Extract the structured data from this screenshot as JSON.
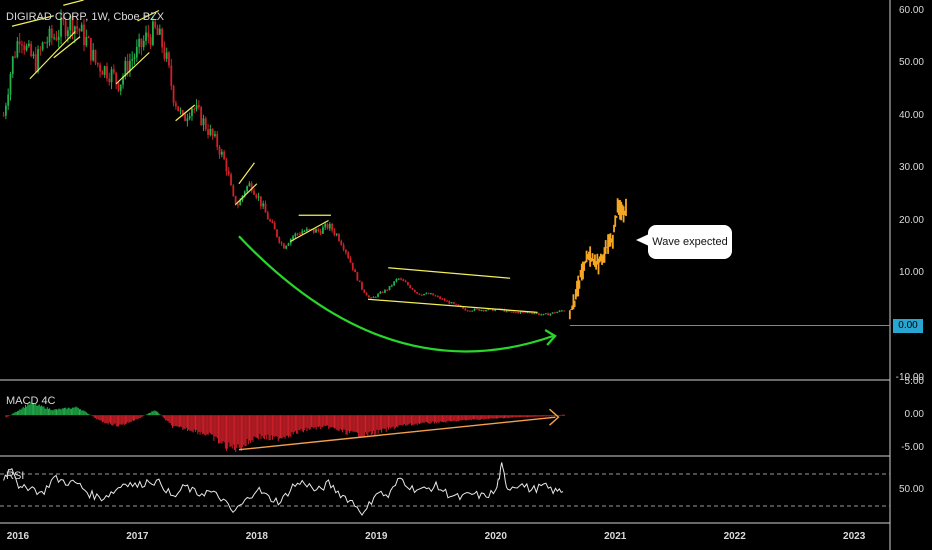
{
  "title": "DIGIRAD CORP, 1W, Cboe BZX",
  "annotation": "Wave expected",
  "current_price_label": "0.00",
  "panels": {
    "macd_label": "MACD 4C",
    "rsi_label": "RSI"
  },
  "colors": {
    "up": "#22b14c",
    "down": "#d0202a",
    "projection": "#f5a623",
    "pattern_lines": "#f2f05a",
    "arc": "#2ad62a",
    "macd_trend": "#f5a04a",
    "price_line": "#26a6d1",
    "rsi_line": "#e8e8e8"
  },
  "chart_data": [
    {
      "type": "candlestick",
      "panel": "price",
      "title": "DIGIRAD CORP, 1W, Cboe BZX",
      "y_ticks": [
        "60.00",
        "50.00",
        "40.00",
        "30.00",
        "20.00",
        "10.00",
        "0.00",
        "-10.00"
      ],
      "ylim": [
        -10,
        62
      ],
      "x_ticks": [
        "2016",
        "2017",
        "2018",
        "2019",
        "2020",
        "2021",
        "2022",
        "2023"
      ],
      "xlim": [
        2015.85,
        2023.3
      ],
      "close_series": [
        [
          2015.88,
          40
        ],
        [
          2015.95,
          50
        ],
        [
          2016.02,
          56
        ],
        [
          2016.08,
          52
        ],
        [
          2016.15,
          50
        ],
        [
          2016.22,
          54
        ],
        [
          2016.3,
          55
        ],
        [
          2016.38,
          57
        ],
        [
          2016.45,
          58
        ],
        [
          2016.52,
          56
        ],
        [
          2016.58,
          54
        ],
        [
          2016.65,
          50
        ],
        [
          2016.72,
          49
        ],
        [
          2016.78,
          48
        ],
        [
          2016.85,
          46
        ],
        [
          2016.92,
          50
        ],
        [
          2017.0,
          52
        ],
        [
          2017.08,
          55
        ],
        [
          2017.15,
          56
        ],
        [
          2017.2,
          54
        ],
        [
          2017.25,
          50
        ],
        [
          2017.3,
          44
        ],
        [
          2017.38,
          39
        ],
        [
          2017.45,
          42
        ],
        [
          2017.52,
          40
        ],
        [
          2017.6,
          37
        ],
        [
          2017.68,
          34
        ],
        [
          2017.75,
          30
        ],
        [
          2017.8,
          24
        ],
        [
          2017.85,
          23
        ],
        [
          2017.9,
          26
        ],
        [
          2017.95,
          27
        ],
        [
          2018.0,
          25
        ],
        [
          2018.08,
          21
        ],
        [
          2018.15,
          18
        ],
        [
          2018.22,
          15
        ],
        [
          2018.3,
          17
        ],
        [
          2018.38,
          18
        ],
        [
          2018.45,
          18
        ],
        [
          2018.52,
          18
        ],
        [
          2018.6,
          19
        ],
        [
          2018.68,
          17
        ],
        [
          2018.75,
          14
        ],
        [
          2018.82,
          10
        ],
        [
          2018.88,
          7
        ],
        [
          2018.95,
          5
        ],
        [
          2019.02,
          6
        ],
        [
          2019.1,
          7
        ],
        [
          2019.18,
          9
        ],
        [
          2019.25,
          8
        ],
        [
          2019.35,
          6
        ],
        [
          2019.45,
          6
        ],
        [
          2019.55,
          5
        ],
        [
          2019.65,
          4
        ],
        [
          2019.75,
          3
        ],
        [
          2019.85,
          3
        ],
        [
          2019.95,
          3
        ],
        [
          2020.05,
          3
        ],
        [
          2020.12,
          2.5
        ],
        [
          2020.2,
          2.5
        ],
        [
          2020.3,
          2.5
        ],
        [
          2020.4,
          2
        ],
        [
          2020.5,
          2.5
        ],
        [
          2020.58,
          3
        ]
      ],
      "projection": [
        [
          2020.62,
          3
        ],
        [
          2020.66,
          5
        ],
        [
          2020.7,
          9
        ],
        [
          2020.74,
          12
        ],
        [
          2020.78,
          14
        ],
        [
          2020.82,
          13
        ],
        [
          2020.86,
          12
        ],
        [
          2020.9,
          14
        ],
        [
          2020.94,
          16
        ],
        [
          2020.98,
          17
        ],
        [
          2021.02,
          23
        ],
        [
          2021.06,
          22
        ],
        [
          2021.1,
          23
        ]
      ],
      "projection_label": "Wave expected",
      "current_price_line": 0
    },
    {
      "type": "histogram",
      "panel": "macd",
      "name": "MACD 4C",
      "y_ticks": [
        "5.00",
        "0.00",
        "-5.00"
      ],
      "ylim": [
        -6,
        5
      ],
      "x": [
        2015.9,
        2016.1,
        2016.3,
        2016.5,
        2016.7,
        2016.85,
        2017.0,
        2017.15,
        2017.3,
        2017.45,
        2017.6,
        2017.75,
        2017.85,
        2018.0,
        2018.15,
        2018.3,
        2018.45,
        2018.6,
        2018.75,
        2018.9,
        2019.05,
        2019.2,
        2019.4,
        2019.6,
        2019.8,
        2020.0,
        2020.2,
        2020.4,
        2020.55
      ],
      "values": [
        -0.4,
        1.8,
        0.8,
        1.2,
        -1.0,
        -1.6,
        -0.6,
        0.8,
        -1.8,
        -2.2,
        -3.0,
        -4.8,
        -5.0,
        -3.2,
        -3.6,
        -2.8,
        -2.0,
        -1.8,
        -2.6,
        -3.0,
        -2.4,
        -1.6,
        -1.2,
        -1.0,
        -0.7,
        -0.5,
        -0.3,
        -0.2,
        -0.1
      ],
      "trend_line": [
        [
          2017.85,
          -5.2
        ],
        [
          2020.5,
          -0.3
        ]
      ]
    },
    {
      "type": "line",
      "panel": "rsi",
      "name": "RSI",
      "y_ticks": [
        "50.00"
      ],
      "ylim": [
        10,
        90
      ],
      "reference_levels": [
        70,
        30
      ],
      "x": [
        2015.88,
        2015.95,
        2016.02,
        2016.1,
        2016.2,
        2016.3,
        2016.4,
        2016.5,
        2016.6,
        2016.7,
        2016.8,
        2016.9,
        2017.0,
        2017.1,
        2017.2,
        2017.3,
        2017.4,
        2017.5,
        2017.6,
        2017.7,
        2017.8,
        2017.9,
        2018.0,
        2018.1,
        2018.2,
        2018.3,
        2018.4,
        2018.5,
        2018.6,
        2018.7,
        2018.8,
        2018.9,
        2019.0,
        2019.1,
        2019.2,
        2019.3,
        2019.4,
        2019.5,
        2019.6,
        2019.7,
        2019.8,
        2019.9,
        2020.0,
        2020.05,
        2020.1,
        2020.2,
        2020.3,
        2020.4,
        2020.5,
        2020.58
      ],
      "values": [
        65,
        80,
        50,
        55,
        45,
        65,
        60,
        58,
        45,
        40,
        48,
        60,
        55,
        62,
        58,
        40,
        55,
        45,
        48,
        40,
        22,
        35,
        52,
        40,
        35,
        55,
        60,
        48,
        58,
        45,
        35,
        20,
        48,
        42,
        65,
        52,
        50,
        55,
        45,
        40,
        45,
        42,
        48,
        80,
        52,
        58,
        50,
        55,
        48,
        50
      ]
    }
  ]
}
